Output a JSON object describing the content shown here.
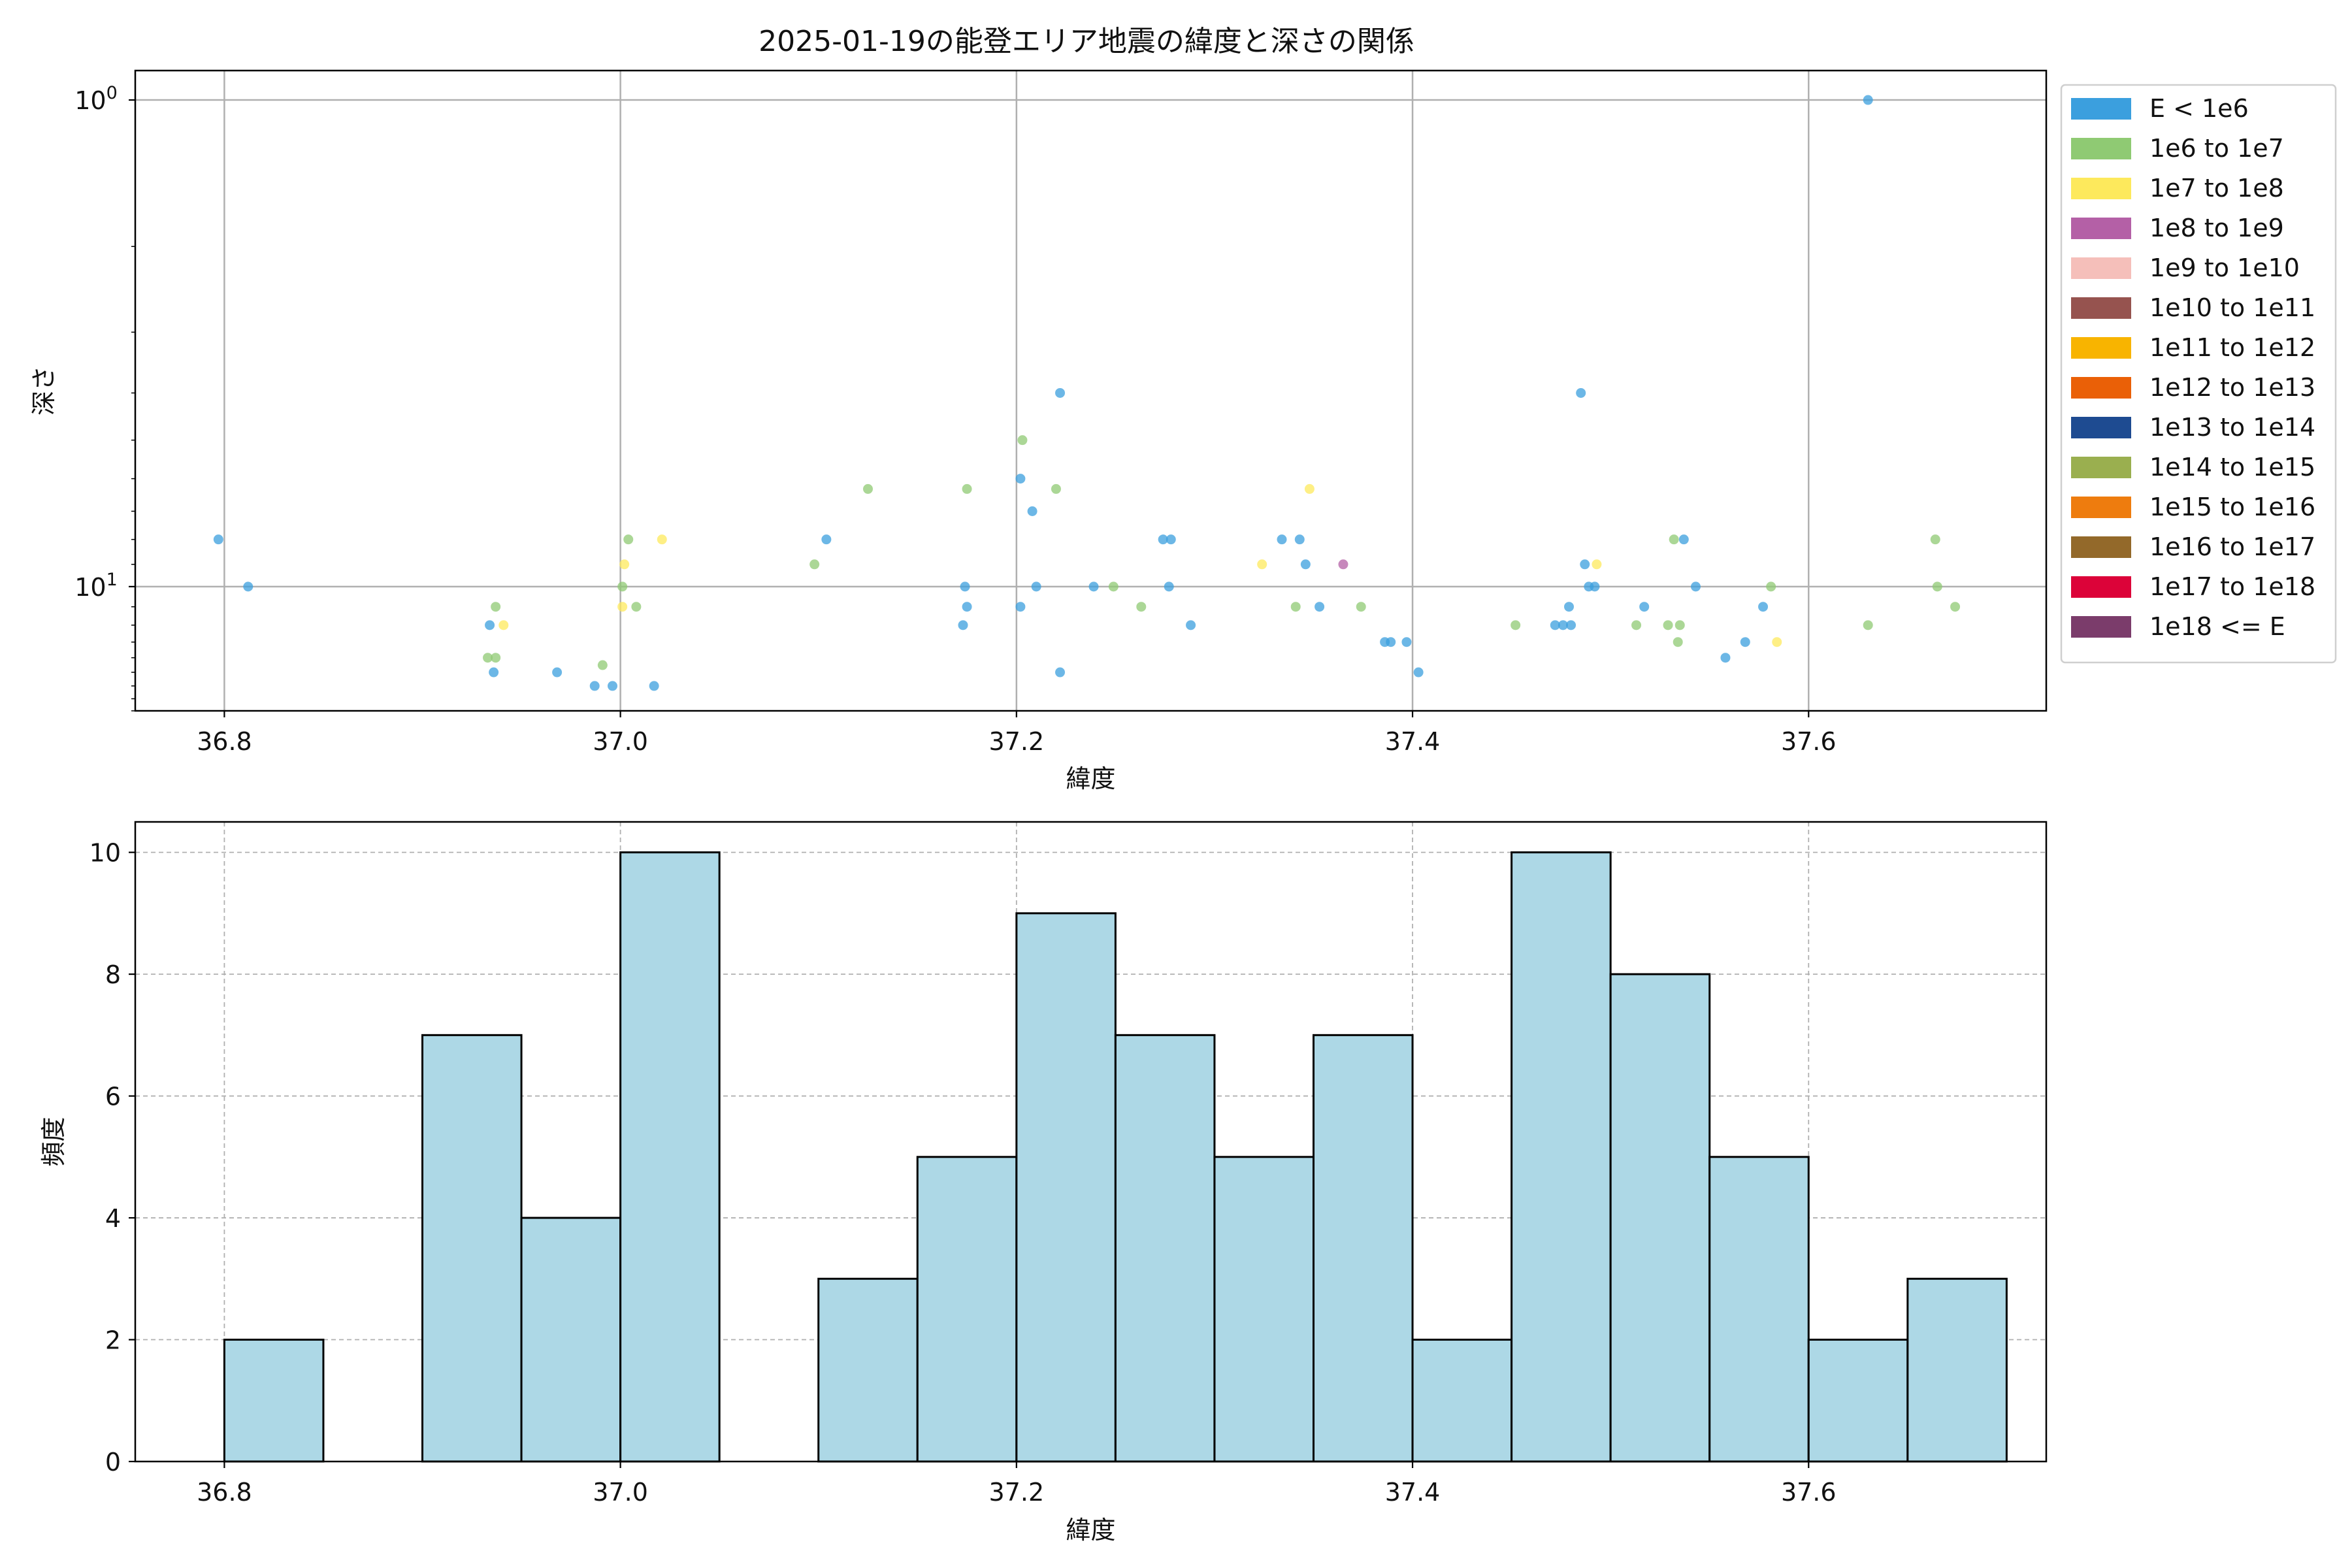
{
  "chart_data": [
    {
      "type": "scatter",
      "title": "2025-01-19の能登エリア地震の緯度と深さの関係",
      "xlabel": "緯度",
      "ylabel": "深さ",
      "xlim": [
        36.755,
        37.72
      ],
      "ylim_log": [
        18.0,
        0.87
      ],
      "yscale": "log",
      "y_inverted": true,
      "grid": true,
      "x_ticks": [
        {
          "value": 36.8,
          "label": "36.8"
        },
        {
          "value": 37.0,
          "label": "37.0"
        },
        {
          "value": 37.2,
          "label": "37.2"
        },
        {
          "value": 37.4,
          "label": "37.4"
        },
        {
          "value": 37.6,
          "label": "37.6"
        }
      ],
      "y_ticks": [
        {
          "value": 1,
          "base": "10",
          "exp": "0"
        },
        {
          "value": 10,
          "base": "10",
          "exp": "1"
        }
      ],
      "legend_position": "outside right",
      "legend": [
        {
          "label": "E < 1e6",
          "color": "#3b9fde"
        },
        {
          "label": "1e6 to 1e7",
          "color": "#8fca73"
        },
        {
          "label": "1e7 to 1e8",
          "color": "#fde95c"
        },
        {
          "label": "1e8 to 1e9",
          "color": "#b460a6"
        },
        {
          "label": "1e9 to 1e10",
          "color": "#f5bfba"
        },
        {
          "label": "1e10 to 1e11",
          "color": "#96534f"
        },
        {
          "label": "1e11 to 1e12",
          "color": "#f8b400"
        },
        {
          "label": "1e12 to 1e13",
          "color": "#ea6007"
        },
        {
          "label": "1e13 to 1e14",
          "color": "#1e4b91"
        },
        {
          "label": "1e14 to 1e15",
          "color": "#9aaf4f"
        },
        {
          "label": "1e15 to 1e16",
          "color": "#ee7c0e"
        },
        {
          "label": "1e16 to 1e17",
          "color": "#93692a"
        },
        {
          "label": "1e17 to 1e18",
          "color": "#dc0339"
        },
        {
          "label": "1e18 <= E",
          "color": "#7b3c6b"
        }
      ],
      "points": [
        {
          "x": 36.797,
          "y": 8.0,
          "c": 0
        },
        {
          "x": 36.812,
          "y": 10.0,
          "c": 0
        },
        {
          "x": 37.63,
          "y": 1.0,
          "c": 0
        },
        {
          "x": 36.934,
          "y": 12.0,
          "c": 0
        },
        {
          "x": 36.936,
          "y": 15.0,
          "c": 0
        },
        {
          "x": 36.968,
          "y": 15.0,
          "c": 0
        },
        {
          "x": 36.987,
          "y": 16.0,
          "c": 0
        },
        {
          "x": 36.996,
          "y": 16.0,
          "c": 0
        },
        {
          "x": 37.017,
          "y": 16.0,
          "c": 0
        },
        {
          "x": 37.104,
          "y": 8.0,
          "c": 0
        },
        {
          "x": 37.174,
          "y": 10.0,
          "c": 0
        },
        {
          "x": 37.175,
          "y": 11.0,
          "c": 0
        },
        {
          "x": 37.173,
          "y": 12.0,
          "c": 0
        },
        {
          "x": 37.202,
          "y": 6.0,
          "c": 0
        },
        {
          "x": 37.202,
          "y": 11.0,
          "c": 0
        },
        {
          "x": 37.208,
          "y": 7.0,
          "c": 0
        },
        {
          "x": 37.21,
          "y": 10.0,
          "c": 0
        },
        {
          "x": 37.222,
          "y": 4.0,
          "c": 0
        },
        {
          "x": 37.222,
          "y": 15.0,
          "c": 0
        },
        {
          "x": 37.239,
          "y": 10.0,
          "c": 0
        },
        {
          "x": 37.274,
          "y": 8.0,
          "c": 0
        },
        {
          "x": 37.278,
          "y": 8.0,
          "c": 0
        },
        {
          "x": 37.277,
          "y": 10.0,
          "c": 0
        },
        {
          "x": 37.288,
          "y": 12.0,
          "c": 0
        },
        {
          "x": 37.334,
          "y": 8.0,
          "c": 0
        },
        {
          "x": 37.343,
          "y": 8.0,
          "c": 0
        },
        {
          "x": 37.346,
          "y": 9.0,
          "c": 0
        },
        {
          "x": 37.353,
          "y": 11.0,
          "c": 0
        },
        {
          "x": 37.386,
          "y": 13.0,
          "c": 0
        },
        {
          "x": 37.389,
          "y": 13.0,
          "c": 0
        },
        {
          "x": 37.397,
          "y": 13.0,
          "c": 0
        },
        {
          "x": 37.403,
          "y": 15.0,
          "c": 0
        },
        {
          "x": 37.472,
          "y": 12.0,
          "c": 0
        },
        {
          "x": 37.476,
          "y": 12.0,
          "c": 0
        },
        {
          "x": 37.48,
          "y": 12.0,
          "c": 0
        },
        {
          "x": 37.479,
          "y": 11.0,
          "c": 0
        },
        {
          "x": 37.485,
          "y": 4.0,
          "c": 0
        },
        {
          "x": 37.487,
          "y": 9.0,
          "c": 0
        },
        {
          "x": 37.489,
          "y": 10.0,
          "c": 0
        },
        {
          "x": 37.492,
          "y": 10.0,
          "c": 0
        },
        {
          "x": 37.517,
          "y": 11.0,
          "c": 0
        },
        {
          "x": 37.537,
          "y": 8.0,
          "c": 0
        },
        {
          "x": 37.543,
          "y": 10.0,
          "c": 0
        },
        {
          "x": 37.558,
          "y": 14.0,
          "c": 0
        },
        {
          "x": 37.568,
          "y": 13.0,
          "c": 0
        },
        {
          "x": 37.577,
          "y": 11.0,
          "c": 0
        },
        {
          "x": 36.933,
          "y": 14.0,
          "c": 1
        },
        {
          "x": 36.937,
          "y": 11.0,
          "c": 1
        },
        {
          "x": 36.937,
          "y": 14.0,
          "c": 1
        },
        {
          "x": 36.991,
          "y": 14.5,
          "c": 1
        },
        {
          "x": 37.001,
          "y": 10.0,
          "c": 1
        },
        {
          "x": 37.004,
          "y": 8.0,
          "c": 1
        },
        {
          "x": 37.008,
          "y": 11.0,
          "c": 1
        },
        {
          "x": 37.098,
          "y": 9.0,
          "c": 1
        },
        {
          "x": 37.125,
          "y": 6.3,
          "c": 1
        },
        {
          "x": 37.175,
          "y": 6.3,
          "c": 1
        },
        {
          "x": 37.203,
          "y": 5.0,
          "c": 1
        },
        {
          "x": 37.22,
          "y": 6.3,
          "c": 1
        },
        {
          "x": 37.249,
          "y": 10.0,
          "c": 1
        },
        {
          "x": 37.263,
          "y": 11.0,
          "c": 1
        },
        {
          "x": 37.341,
          "y": 11.0,
          "c": 1
        },
        {
          "x": 37.374,
          "y": 11.0,
          "c": 1
        },
        {
          "x": 37.452,
          "y": 12.0,
          "c": 1
        },
        {
          "x": 37.513,
          "y": 12.0,
          "c": 1
        },
        {
          "x": 37.529,
          "y": 12.0,
          "c": 1
        },
        {
          "x": 37.532,
          "y": 8.0,
          "c": 1
        },
        {
          "x": 37.534,
          "y": 13.0,
          "c": 1
        },
        {
          "x": 37.535,
          "y": 12.0,
          "c": 1
        },
        {
          "x": 37.581,
          "y": 10.0,
          "c": 1
        },
        {
          "x": 37.63,
          "y": 12.0,
          "c": 1
        },
        {
          "x": 37.664,
          "y": 8.0,
          "c": 1
        },
        {
          "x": 37.665,
          "y": 10.0,
          "c": 1
        },
        {
          "x": 37.674,
          "y": 11.0,
          "c": 1
        },
        {
          "x": 36.941,
          "y": 12.0,
          "c": 2
        },
        {
          "x": 37.001,
          "y": 11.0,
          "c": 2
        },
        {
          "x": 37.002,
          "y": 9.0,
          "c": 2
        },
        {
          "x": 37.021,
          "y": 8.0,
          "c": 2
        },
        {
          "x": 37.324,
          "y": 9.0,
          "c": 2
        },
        {
          "x": 37.348,
          "y": 6.3,
          "c": 2
        },
        {
          "x": 37.493,
          "y": 9.0,
          "c": 2
        },
        {
          "x": 37.584,
          "y": 13.0,
          "c": 2
        },
        {
          "x": 37.365,
          "y": 9.0,
          "c": 3
        }
      ]
    },
    {
      "type": "bar",
      "subtype": "histogram",
      "xlabel": "緯度",
      "ylabel": "頻度",
      "xlim": [
        36.755,
        37.72
      ],
      "ylim": [
        0,
        10.5
      ],
      "grid": true,
      "bin_width": 0.05,
      "bin_starts": [
        36.8,
        36.9,
        36.95,
        37.0,
        37.1,
        37.15,
        37.2,
        37.25,
        37.3,
        37.35,
        37.4,
        37.45,
        37.5,
        37.55,
        37.6,
        37.65
      ],
      "values": [
        2,
        7,
        4,
        10,
        3,
        5,
        9,
        7,
        5,
        7,
        2,
        10,
        8,
        5,
        2,
        3
      ],
      "x_ticks": [
        {
          "value": 36.8,
          "label": "36.8"
        },
        {
          "value": 37.0,
          "label": "37.0"
        },
        {
          "value": 37.2,
          "label": "37.2"
        },
        {
          "value": 37.4,
          "label": "37.4"
        },
        {
          "value": 37.6,
          "label": "37.6"
        }
      ],
      "y_ticks": [
        {
          "value": 0,
          "label": "0"
        },
        {
          "value": 2,
          "label": "2"
        },
        {
          "value": 4,
          "label": "4"
        },
        {
          "value": 6,
          "label": "6"
        },
        {
          "value": 8,
          "label": "8"
        },
        {
          "value": 10,
          "label": "10"
        }
      ]
    }
  ]
}
